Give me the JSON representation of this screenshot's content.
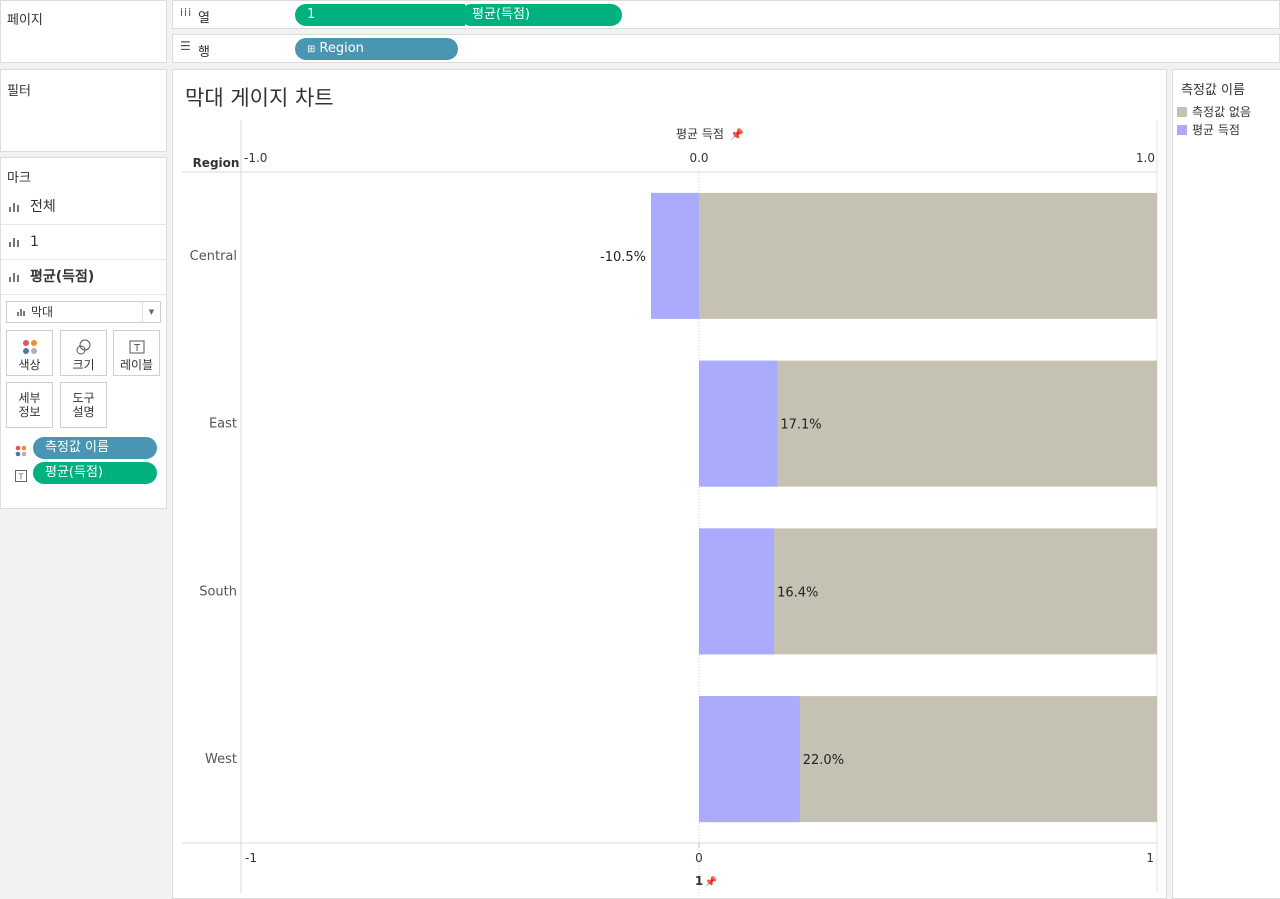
{
  "shelves": {
    "pages_label": "페이지",
    "columns_label": "열",
    "rows_label": "행",
    "column_pills": [
      "1",
      "평균(득점)"
    ],
    "row_pills": [
      "Region"
    ]
  },
  "filters": {
    "label": "필터"
  },
  "marks": {
    "label": "마크",
    "cards": [
      "전체",
      "1",
      "평균(득점)"
    ],
    "mark_type": "막대",
    "buttons": {
      "color": "색상",
      "size": "크기",
      "label": "레이블",
      "detail_1": "세부",
      "detail_2": "정보",
      "tooltip_1": "도구",
      "tooltip_2": "설명"
    },
    "fields": [
      "측정값 이름",
      "평균(득점)"
    ]
  },
  "view": {
    "title": "막대 게이지 차트",
    "header_label": "Region"
  },
  "legend": {
    "title": "측정값 이름",
    "items": [
      {
        "label": "측정값 없음",
        "color": "#c6c2b3"
      },
      {
        "label": "평균 득점",
        "color": "#aaabfc"
      }
    ]
  },
  "chart_data": {
    "type": "bar",
    "orientation": "horizontal",
    "categories": [
      "Central",
      "East",
      "South",
      "West"
    ],
    "series": [
      {
        "name": "측정값 없음",
        "values": [
          1,
          1,
          1,
          1
        ],
        "color": "#c6c2b3"
      },
      {
        "name": "평균 득점",
        "values": [
          -0.105,
          0.171,
          0.164,
          0.22
        ],
        "color": "#aaabfc"
      }
    ],
    "data_labels": [
      "-10.5%",
      "17.1%",
      "16.4%",
      "22.0%"
    ],
    "top_axis": {
      "label": "평균 득점",
      "ticks": [
        "-1.0",
        "0.0",
        "1.0"
      ],
      "range": [
        -1,
        1
      ]
    },
    "bottom_axis": {
      "label": "1",
      "ticks": [
        "-1",
        "0",
        "1"
      ],
      "range": [
        -1,
        1
      ]
    }
  }
}
